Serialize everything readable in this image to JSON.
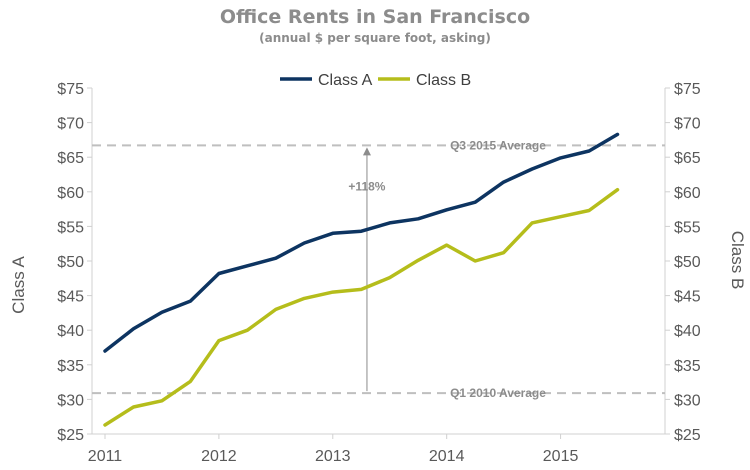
{
  "chart_data": {
    "type": "line",
    "title": "Office Rents in San Francisco",
    "subtitle": "(annual $ per square foot, asking)",
    "ylabel_left": "Class A",
    "ylabel_right": "Class B",
    "ylim": [
      25,
      75
    ],
    "yticks": [
      25,
      30,
      35,
      40,
      45,
      50,
      55,
      60,
      65,
      70,
      75
    ],
    "ytick_labels": [
      "$25",
      "$30",
      "$35",
      "$40",
      "$45",
      "$50",
      "$55",
      "$60",
      "$65",
      "$70",
      "$75"
    ],
    "xlim": [
      2011.0,
      2015.75
    ],
    "xticks": [
      2011,
      2012,
      2013,
      2014,
      2015
    ],
    "xtick_labels": [
      "2011",
      "2012",
      "2013",
      "2014",
      "2015"
    ],
    "legend_position": "top-center",
    "grid": false,
    "colors": {
      "class_a": "#0d3461",
      "class_b": "#b5bd1b",
      "reference": "#bfbfbf",
      "arrow": "#8c8c8c",
      "text": "#595959"
    },
    "series": [
      {
        "name": "Class A",
        "x": [
          2011.0,
          2011.25,
          2011.5,
          2011.75,
          2012.0,
          2012.25,
          2012.5,
          2012.75,
          2013.0,
          2013.25,
          2013.5,
          2013.75,
          2014.0,
          2014.25,
          2014.5,
          2014.75,
          2015.0,
          2015.25,
          2015.5
        ],
        "values": [
          37.0,
          40.2,
          42.6,
          44.2,
          48.2,
          49.3,
          50.4,
          52.6,
          54.0,
          54.3,
          55.5,
          56.1,
          57.4,
          58.5,
          61.4,
          63.3,
          64.9,
          65.9,
          68.3
        ]
      },
      {
        "name": "Class B",
        "x": [
          2011.0,
          2011.25,
          2011.5,
          2011.75,
          2012.0,
          2012.25,
          2012.5,
          2012.75,
          2013.0,
          2013.25,
          2013.5,
          2013.75,
          2014.0,
          2014.25,
          2014.5,
          2014.75,
          2015.0,
          2015.25,
          2015.5
        ],
        "values": [
          26.3,
          28.9,
          29.8,
          32.6,
          38.5,
          40.0,
          43.0,
          44.6,
          45.5,
          45.9,
          47.6,
          50.1,
          52.3,
          50.0,
          51.2,
          55.5,
          56.4,
          57.3,
          60.3
        ]
      }
    ],
    "reference_lines": [
      {
        "label": "Q3 2015 Average",
        "value": 66.7
      },
      {
        "label": "Q1 2010 Average",
        "value": 30.9
      }
    ],
    "annotation": {
      "text": "+118%",
      "x": 2013.3,
      "from": 30.9,
      "to": 66.7
    }
  }
}
